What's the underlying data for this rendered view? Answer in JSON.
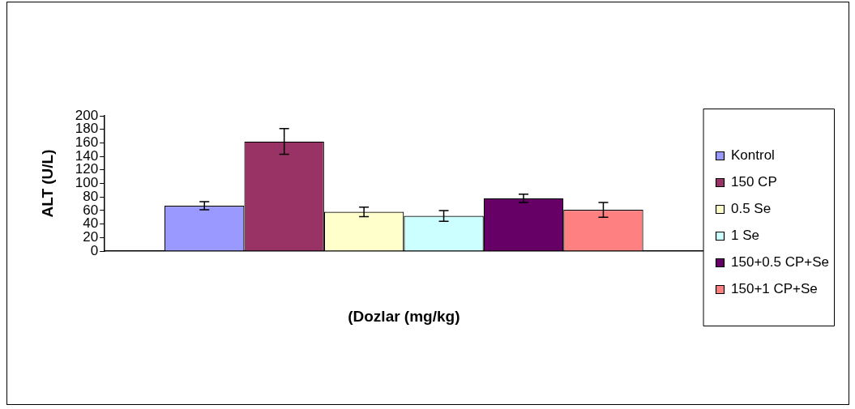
{
  "chart_data": {
    "type": "bar",
    "xlabel": "(Dozlar (mg/kg)",
    "ylabel": "ALT (U/L)",
    "categories": [
      null
    ],
    "series": [
      {
        "name": "Kontrol",
        "color": "#9999ff",
        "values": [
          67
        ],
        "errors": [
          6
        ]
      },
      {
        "name": "150 CP",
        "color": "#993366",
        "values": [
          162
        ],
        "errors": [
          19
        ]
      },
      {
        "name": "0.5 Se",
        "color": "#ffffcc",
        "values": [
          58
        ],
        "errors": [
          7
        ]
      },
      {
        "name": "1 Se",
        "color": "#ccffff",
        "values": [
          52
        ],
        "errors": [
          8
        ]
      },
      {
        "name": "150+0.5 CP+Se",
        "color": "#660066",
        "values": [
          78
        ],
        "errors": [
          6
        ]
      },
      {
        "name": "150+1 CP+Se",
        "color": "#ff8080",
        "values": [
          61
        ],
        "errors": [
          11
        ]
      }
    ],
    "ylim": [
      0,
      200
    ],
    "yticks": [
      0,
      20,
      40,
      60,
      80,
      100,
      120,
      140,
      160,
      180,
      200
    ],
    "grid": false,
    "legend": "right"
  }
}
